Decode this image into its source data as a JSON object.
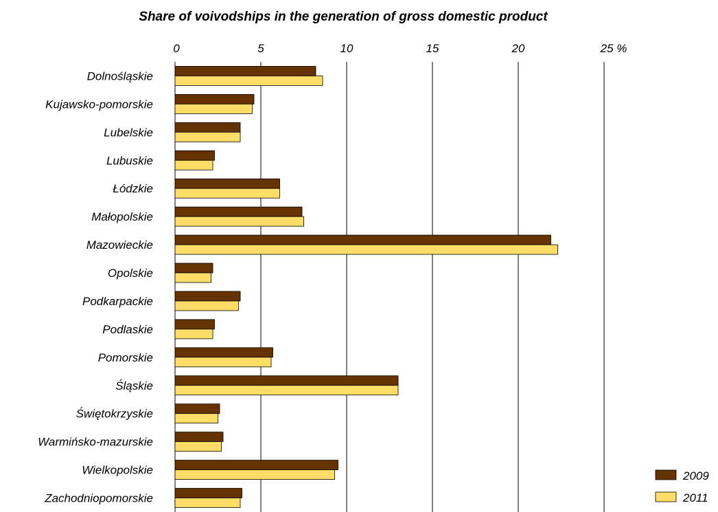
{
  "chart_data": {
    "type": "bar",
    "orientation": "horizontal",
    "title": "Share of voivodships in the generation of gross domestic product",
    "x_tick_labels": [
      "0",
      "5",
      "10",
      "15",
      "20",
      "25 %"
    ],
    "xlim": [
      0,
      25
    ],
    "x_ticks": [
      0,
      5,
      10,
      15,
      20,
      25
    ],
    "grid": true,
    "legend_position": "bottom-right",
    "categories": [
      "Dolnośląskie",
      "Kujawsko-pomorskie",
      "Lubelskie",
      "Lubuskie",
      "Łódzkie",
      "Małopolskie",
      "Mazowieckie",
      "Opolskie",
      "Podkarpackie",
      "Podlaskie",
      "Pomorskie",
      "Śląskie",
      "Świętokrzyskie",
      "Warmińsko-mazurskie",
      "Wielkopolskie",
      "Zachodniopomorskie"
    ],
    "series": [
      {
        "name": "2009",
        "color": "#663300",
        "values": [
          8.2,
          4.6,
          3.8,
          2.3,
          6.1,
          7.4,
          21.9,
          2.2,
          3.8,
          2.3,
          5.7,
          13.0,
          2.6,
          2.8,
          9.5,
          3.9
        ]
      },
      {
        "name": "2011",
        "color": "#FFDD66",
        "values": [
          8.6,
          4.5,
          3.8,
          2.2,
          6.1,
          7.5,
          22.3,
          2.1,
          3.7,
          2.2,
          5.6,
          13.0,
          2.5,
          2.7,
          9.3,
          3.8
        ]
      }
    ]
  }
}
